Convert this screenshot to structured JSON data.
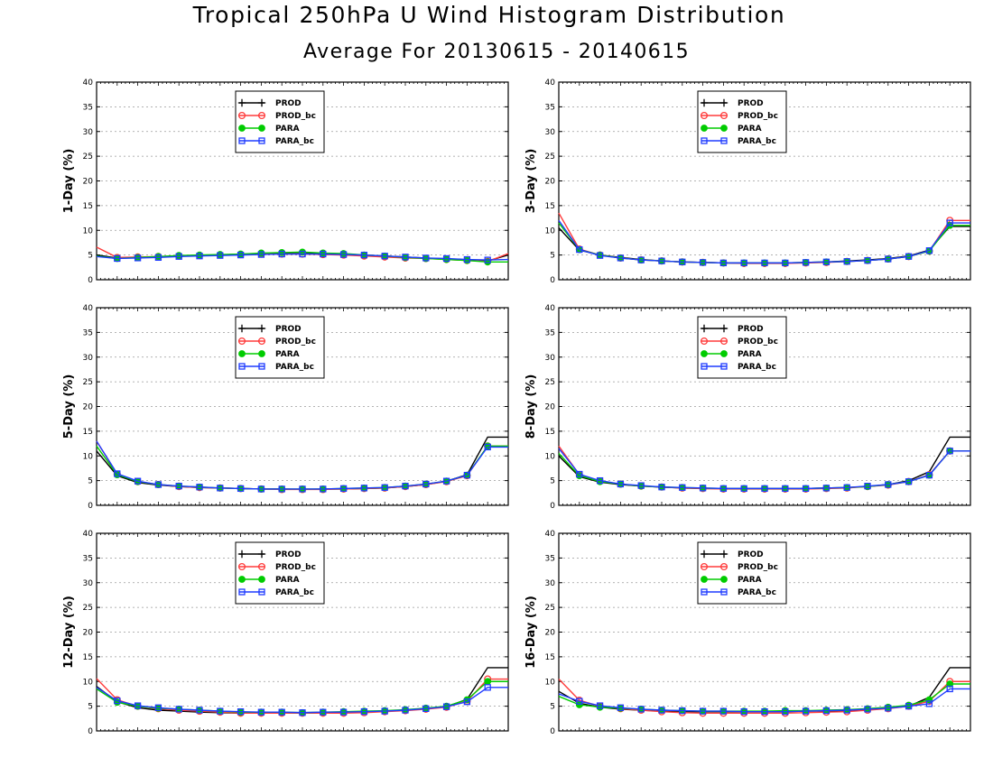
{
  "title": "Tropical 250hPa U Wind Histogram Distribution",
  "subtitle": "Average For 20130615 - 20140615",
  "legend": [
    {
      "name": "PROD",
      "color": "#000000",
      "marker": "plus"
    },
    {
      "name": "PROD_bc",
      "color": "#ff3b3b",
      "marker": "open-circle"
    },
    {
      "name": "PARA",
      "color": "#00cc00",
      "marker": "filled-circle"
    },
    {
      "name": "PARA_bc",
      "color": "#1f3bff",
      "marker": "open-square"
    }
  ],
  "chart_data": [
    {
      "type": "line",
      "ylabel": "1-Day (%)",
      "ylim": [
        0,
        40
      ],
      "yticks": [
        0,
        5,
        10,
        15,
        20,
        25,
        30,
        35,
        40
      ],
      "grid": true,
      "legend_position": "top-left",
      "x_tick_labels": "none",
      "x": [
        0,
        1,
        2,
        3,
        4,
        5,
        6,
        7,
        8,
        9,
        10,
        11,
        12,
        13,
        14,
        15,
        16,
        17,
        18,
        19,
        20
      ],
      "series": [
        {
          "name": "PROD",
          "values": [
            5.0,
            4.4,
            4.5,
            4.6,
            4.8,
            4.9,
            5.0,
            5.2,
            5.2,
            5.3,
            5.3,
            5.3,
            5.2,
            5.0,
            4.8,
            4.6,
            4.4,
            4.2,
            4.0,
            3.8,
            5.0
          ]
        },
        {
          "name": "PROD_bc",
          "values": [
            6.6,
            4.5,
            4.6,
            4.7,
            4.8,
            4.9,
            5.0,
            5.1,
            5.2,
            5.2,
            5.2,
            5.1,
            5.0,
            4.8,
            4.6,
            4.4,
            4.3,
            4.1,
            3.9,
            3.7,
            5.3
          ]
        },
        {
          "name": "PARA",
          "values": [
            4.8,
            4.3,
            4.5,
            4.7,
            4.9,
            5.0,
            5.1,
            5.2,
            5.4,
            5.5,
            5.6,
            5.4,
            5.3,
            5.0,
            4.8,
            4.5,
            4.3,
            4.1,
            3.9,
            3.6,
            3.6
          ]
        },
        {
          "name": "PARA_bc",
          "values": [
            4.7,
            4.3,
            4.4,
            4.5,
            4.7,
            4.8,
            4.9,
            5.0,
            5.1,
            5.2,
            5.2,
            5.2,
            5.1,
            5.0,
            4.8,
            4.6,
            4.4,
            4.3,
            4.1,
            4.0,
            4.1
          ]
        }
      ]
    },
    {
      "type": "line",
      "ylabel": "3-Day (%)",
      "ylim": [
        0,
        40
      ],
      "yticks": [
        0,
        5,
        10,
        15,
        20,
        25,
        30,
        35,
        40
      ],
      "grid": true,
      "legend_position": "top-left",
      "x_tick_labels": "none",
      "x": [
        0,
        1,
        2,
        3,
        4,
        5,
        6,
        7,
        8,
        9,
        10,
        11,
        12,
        13,
        14,
        15,
        16,
        17,
        18,
        19,
        20
      ],
      "series": [
        {
          "name": "PROD",
          "values": [
            10.5,
            6.0,
            5.0,
            4.5,
            4.1,
            3.8,
            3.6,
            3.5,
            3.4,
            3.4,
            3.4,
            3.4,
            3.5,
            3.6,
            3.8,
            4.0,
            4.3,
            4.8,
            6.0,
            10.8,
            10.8
          ]
        },
        {
          "name": "PROD_bc",
          "values": [
            13.5,
            6.2,
            5.0,
            4.4,
            4.0,
            3.8,
            3.6,
            3.5,
            3.4,
            3.3,
            3.3,
            3.3,
            3.4,
            3.5,
            3.7,
            3.9,
            4.2,
            4.7,
            5.8,
            12.0,
            12.0
          ]
        },
        {
          "name": "PARA",
          "values": [
            11.5,
            6.1,
            5.0,
            4.4,
            4.0,
            3.8,
            3.6,
            3.5,
            3.4,
            3.4,
            3.4,
            3.4,
            3.5,
            3.6,
            3.7,
            3.9,
            4.2,
            4.7,
            5.8,
            11.0,
            11.0
          ]
        },
        {
          "name": "PARA_bc",
          "values": [
            12.0,
            6.1,
            4.9,
            4.4,
            4.0,
            3.8,
            3.6,
            3.5,
            3.4,
            3.4,
            3.4,
            3.4,
            3.5,
            3.6,
            3.7,
            3.9,
            4.2,
            4.7,
            5.9,
            11.5,
            11.5
          ]
        }
      ]
    },
    {
      "type": "line",
      "ylabel": "5-Day (%)",
      "ylim": [
        0,
        40
      ],
      "yticks": [
        0,
        5,
        10,
        15,
        20,
        25,
        30,
        35,
        40
      ],
      "grid": true,
      "legend_position": "top-left",
      "x_tick_labels": "none",
      "x": [
        0,
        1,
        2,
        3,
        4,
        5,
        6,
        7,
        8,
        9,
        10,
        11,
        12,
        13,
        14,
        15,
        16,
        17,
        18,
        19,
        20
      ],
      "series": [
        {
          "name": "PROD",
          "values": [
            11.0,
            6.0,
            4.6,
            4.1,
            3.8,
            3.6,
            3.5,
            3.4,
            3.3,
            3.3,
            3.2,
            3.3,
            3.3,
            3.4,
            3.5,
            3.8,
            4.2,
            4.9,
            6.2,
            13.8,
            13.8
          ]
        },
        {
          "name": "PROD_bc",
          "values": [
            13.0,
            6.3,
            4.8,
            4.2,
            3.8,
            3.6,
            3.5,
            3.4,
            3.3,
            3.2,
            3.2,
            3.2,
            3.3,
            3.4,
            3.5,
            3.8,
            4.2,
            4.8,
            6.0,
            12.0,
            12.0
          ]
        },
        {
          "name": "PARA",
          "values": [
            12.0,
            6.2,
            4.8,
            4.2,
            3.9,
            3.7,
            3.5,
            3.4,
            3.3,
            3.3,
            3.3,
            3.3,
            3.4,
            3.5,
            3.6,
            3.9,
            4.3,
            4.9,
            6.1,
            12.0,
            12.0
          ]
        },
        {
          "name": "PARA_bc",
          "values": [
            13.0,
            6.4,
            4.9,
            4.2,
            3.9,
            3.7,
            3.5,
            3.4,
            3.3,
            3.3,
            3.3,
            3.3,
            3.4,
            3.5,
            3.6,
            3.9,
            4.3,
            4.9,
            6.1,
            11.8,
            11.8
          ]
        }
      ]
    },
    {
      "type": "line",
      "ylabel": "8-Day (%)",
      "ylim": [
        0,
        40
      ],
      "yticks": [
        0,
        5,
        10,
        15,
        20,
        25,
        30,
        35,
        40
      ],
      "grid": true,
      "legend_position": "top-left",
      "x_tick_labels": "none",
      "x": [
        0,
        1,
        2,
        3,
        4,
        5,
        6,
        7,
        8,
        9,
        10,
        11,
        12,
        13,
        14,
        15,
        16,
        17,
        18,
        19,
        20
      ],
      "series": [
        {
          "name": "PROD",
          "values": [
            10.0,
            5.8,
            4.7,
            4.2,
            3.9,
            3.7,
            3.5,
            3.4,
            3.4,
            3.4,
            3.4,
            3.4,
            3.4,
            3.5,
            3.6,
            3.8,
            4.2,
            5.0,
            6.8,
            13.8,
            13.8
          ]
        },
        {
          "name": "PROD_bc",
          "values": [
            12.0,
            6.2,
            4.9,
            4.3,
            3.9,
            3.7,
            3.5,
            3.4,
            3.3,
            3.3,
            3.3,
            3.3,
            3.3,
            3.4,
            3.5,
            3.8,
            4.1,
            4.8,
            6.2,
            11.0,
            11.0
          ]
        },
        {
          "name": "PARA",
          "values": [
            10.5,
            6.0,
            4.8,
            4.3,
            3.9,
            3.7,
            3.6,
            3.5,
            3.4,
            3.4,
            3.4,
            3.4,
            3.4,
            3.5,
            3.6,
            3.8,
            4.2,
            4.8,
            6.1,
            11.0,
            11.0
          ]
        },
        {
          "name": "PARA_bc",
          "values": [
            11.5,
            6.3,
            5.0,
            4.3,
            4.0,
            3.7,
            3.6,
            3.5,
            3.4,
            3.4,
            3.4,
            3.4,
            3.4,
            3.5,
            3.6,
            3.9,
            4.2,
            4.8,
            6.1,
            11.0,
            11.0
          ]
        }
      ]
    },
    {
      "type": "line",
      "ylabel": "12-Day (%)",
      "ylim": [
        0,
        40
      ],
      "yticks": [
        0,
        5,
        10,
        15,
        20,
        25,
        30,
        35,
        40
      ],
      "grid": true,
      "legend_position": "top-left",
      "x_tick_labels": "none",
      "x": [
        0,
        1,
        2,
        3,
        4,
        5,
        6,
        7,
        8,
        9,
        10,
        11,
        12,
        13,
        14,
        15,
        16,
        17,
        18,
        19,
        20
      ],
      "series": [
        {
          "name": "PROD",
          "values": [
            9.0,
            5.9,
            4.7,
            4.2,
            4.0,
            3.8,
            3.7,
            3.6,
            3.6,
            3.6,
            3.6,
            3.7,
            3.7,
            3.8,
            4.0,
            4.2,
            4.5,
            4.9,
            6.4,
            12.8,
            12.8
          ]
        },
        {
          "name": "PROD_bc",
          "values": [
            10.6,
            6.3,
            5.0,
            4.5,
            4.2,
            4.0,
            3.8,
            3.6,
            3.6,
            3.6,
            3.6,
            3.6,
            3.6,
            3.7,
            3.9,
            4.1,
            4.4,
            4.8,
            6.0,
            10.5,
            10.5
          ]
        },
        {
          "name": "PARA",
          "values": [
            8.5,
            5.8,
            5.0,
            4.6,
            4.4,
            4.2,
            4.0,
            3.8,
            3.8,
            3.8,
            3.7,
            3.8,
            3.9,
            4.0,
            4.1,
            4.3,
            4.6,
            5.0,
            6.3,
            10.0,
            10.0
          ]
        },
        {
          "name": "PARA_bc",
          "values": [
            8.8,
            6.1,
            5.1,
            4.7,
            4.4,
            4.2,
            4.0,
            3.9,
            3.8,
            3.8,
            3.7,
            3.8,
            3.8,
            3.9,
            4.0,
            4.2,
            4.5,
            4.9,
            5.9,
            8.8,
            8.8
          ]
        }
      ]
    },
    {
      "type": "line",
      "ylabel": "16-Day (%)",
      "ylim": [
        0,
        40
      ],
      "yticks": [
        0,
        5,
        10,
        15,
        20,
        25,
        30,
        35,
        40
      ],
      "grid": true,
      "legend_position": "top-left",
      "x_tick_labels": "none",
      "x": [
        0,
        1,
        2,
        3,
        4,
        5,
        6,
        7,
        8,
        9,
        10,
        11,
        12,
        13,
        14,
        15,
        16,
        17,
        18,
        19,
        20
      ],
      "series": [
        {
          "name": "PROD",
          "values": [
            8.0,
            5.6,
            4.8,
            4.4,
            4.2,
            4.0,
            3.9,
            3.9,
            3.9,
            3.9,
            3.9,
            3.9,
            4.0,
            4.0,
            4.1,
            4.3,
            4.6,
            5.0,
            6.8,
            12.8,
            12.8
          ]
        },
        {
          "name": "PROD_bc",
          "values": [
            10.5,
            6.2,
            5.0,
            4.5,
            4.2,
            3.9,
            3.7,
            3.6,
            3.6,
            3.6,
            3.6,
            3.6,
            3.7,
            3.8,
            3.9,
            4.2,
            4.5,
            5.0,
            6.0,
            10.0,
            10.0
          ]
        },
        {
          "name": "PARA",
          "values": [
            7.0,
            5.3,
            4.8,
            4.6,
            4.4,
            4.2,
            4.1,
            4.0,
            4.0,
            4.0,
            4.0,
            4.1,
            4.1,
            4.2,
            4.3,
            4.5,
            4.8,
            5.2,
            6.3,
            9.5,
            9.5
          ]
        },
        {
          "name": "PARA_bc",
          "values": [
            7.5,
            6.0,
            5.1,
            4.7,
            4.4,
            4.2,
            4.1,
            4.0,
            4.0,
            3.9,
            3.9,
            3.9,
            4.0,
            4.1,
            4.2,
            4.4,
            4.6,
            5.0,
            5.5,
            8.5,
            8.5
          ]
        }
      ]
    }
  ]
}
